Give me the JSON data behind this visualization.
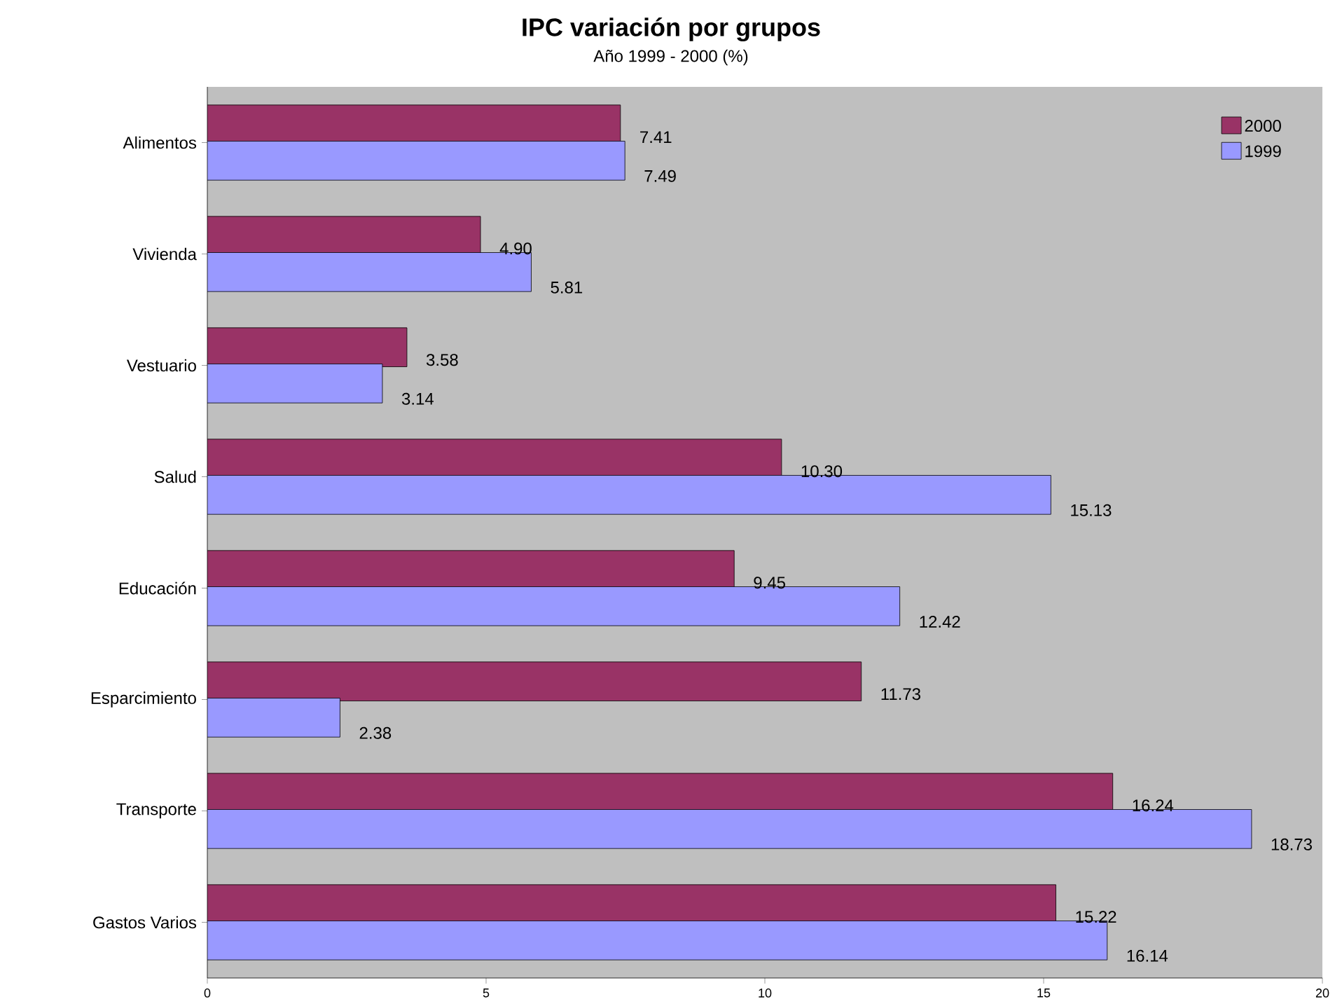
{
  "chart_data": {
    "type": "bar",
    "orientation": "horizontal",
    "title": "IPC variación por grupos",
    "subtitle": "Año 1999 - 2000  (%)",
    "categories": [
      "Alimentos",
      "Vivienda",
      "Vestuario",
      "Salud",
      "Educación",
      "Esparcimiento",
      "Transporte",
      "Gastos Varios"
    ],
    "series": [
      {
        "name": "2000",
        "color": "#993366",
        "values": [
          7.41,
          4.9,
          3.58,
          10.3,
          9.45,
          11.73,
          16.24,
          15.22
        ],
        "value_labels": [
          "7.41",
          "4.90",
          "3.58",
          "10.30",
          "9.45",
          "11.73",
          "16.24",
          "15.22"
        ]
      },
      {
        "name": "1999",
        "color": "#9999ff",
        "values": [
          7.49,
          5.81,
          3.14,
          15.13,
          12.42,
          2.38,
          18.73,
          16.14
        ],
        "value_labels": [
          "7.49",
          "5.81",
          "3.14",
          "15.13",
          "12.42",
          "2.38",
          "18.73",
          "16.14"
        ]
      }
    ],
    "xlim": [
      0,
      20
    ],
    "xticks": [
      0,
      5,
      10,
      15,
      20
    ],
    "legend": "top right",
    "grid": false
  }
}
